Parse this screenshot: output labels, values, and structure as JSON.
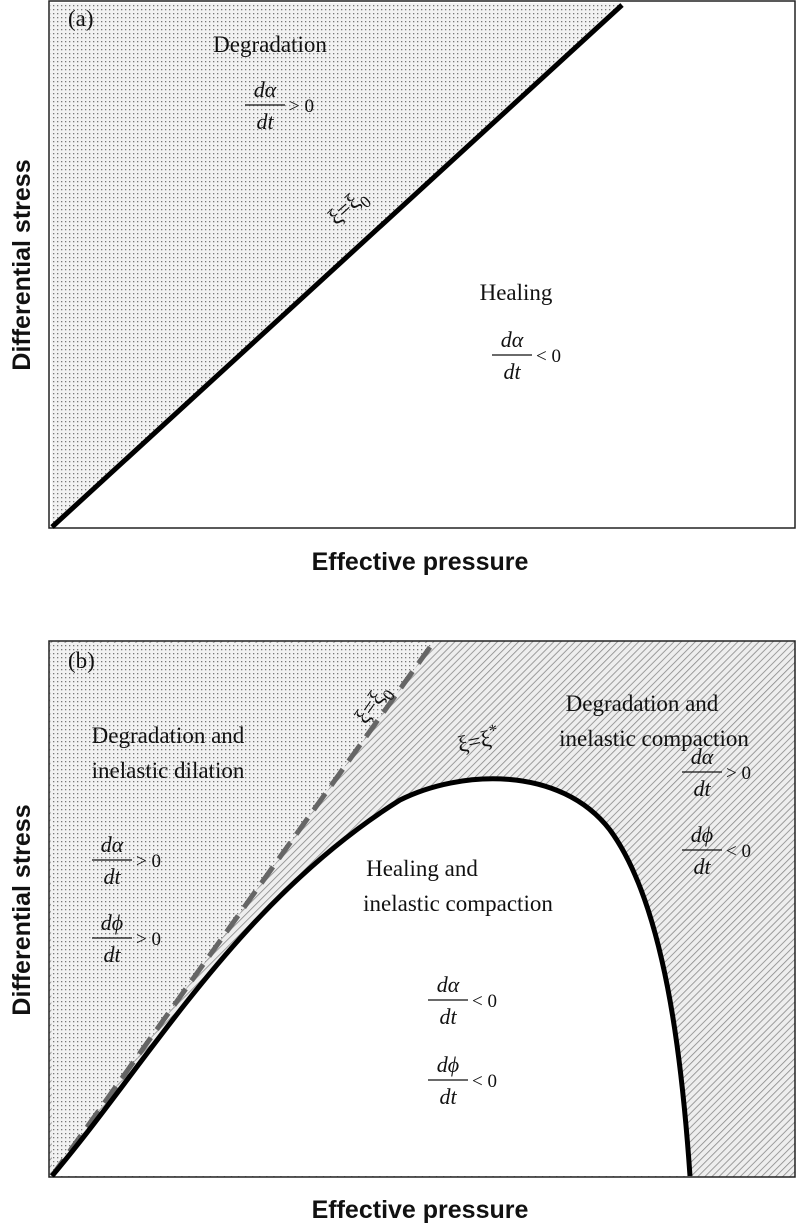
{
  "panel_a": {
    "label": "(a)",
    "y_axis_label": "Differential stress",
    "x_axis_label": "Effective pressure",
    "boundary_label": {
      "base": "ξ=ξ",
      "sup_or_sub": "0"
    },
    "regions": [
      {
        "title": [
          "Degradation"
        ],
        "rates": [
          {
            "numerator": "dα",
            "denominator": "dt",
            "relation": "> 0"
          }
        ]
      },
      {
        "title": [
          "Healing"
        ],
        "rates": [
          {
            "numerator": "dα",
            "denominator": "dt",
            "relation": "< 0"
          }
        ]
      }
    ]
  },
  "panel_b": {
    "label": "(b)",
    "y_axis_label": "Differential stress",
    "x_axis_label": "Effective pressure",
    "dashed_label": {
      "base": "ξ=ξ",
      "sup_or_sub": "0"
    },
    "curve_label": {
      "base": "ξ=ξ",
      "sup_or_sub": "*"
    },
    "regions": [
      {
        "title": [
          "Degradation and",
          "inelastic dilation"
        ],
        "rates": [
          {
            "numerator": "dα",
            "denominator": "dt",
            "relation": "> 0"
          },
          {
            "numerator": "dϕ",
            "denominator": "dt",
            "relation": "> 0"
          }
        ]
      },
      {
        "title": [
          "Degradation and",
          "inelastic compaction"
        ],
        "rates": [
          {
            "numerator": "dα",
            "denominator": "dt",
            "relation": "> 0"
          },
          {
            "numerator": "dϕ",
            "denominator": "dt",
            "relation": "< 0"
          }
        ]
      },
      {
        "title": [
          "Healing and",
          "inelastic compaction"
        ],
        "rates": [
          {
            "numerator": "dα",
            "denominator": "dt",
            "relation": "< 0"
          },
          {
            "numerator": "dϕ",
            "denominator": "dt",
            "relation": "< 0"
          }
        ]
      }
    ]
  }
}
